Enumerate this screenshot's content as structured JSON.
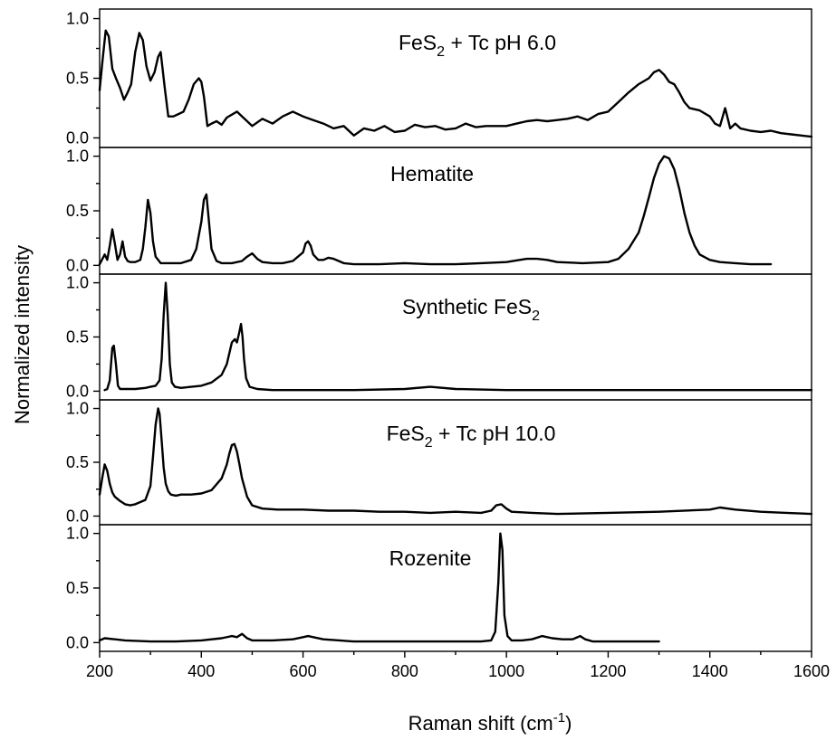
{
  "chart_data": {
    "type": "line",
    "xlabel": "Raman shift (cm",
    "xlabel_sup": "-1",
    "xlabel_end": ")",
    "ylabel": "Normalized intensity",
    "xlim": [
      200,
      1600
    ],
    "x_ticks": [
      200,
      400,
      600,
      800,
      1000,
      1200,
      1400,
      1600
    ],
    "y_ticks": [
      0.0,
      0.5,
      1.0
    ],
    "y_tick_labels": [
      "0.0",
      "0.5",
      "1.0"
    ],
    "panels": [
      {
        "label": "FeS",
        "label_sub": "2",
        "label_rest": " + Tc pH 6.0",
        "ylim": [
          -0.08,
          1.08
        ],
        "x": [
          200,
          205,
          212,
          218,
          225,
          232,
          240,
          248,
          255,
          262,
          270,
          278,
          285,
          292,
          300,
          308,
          315,
          320,
          328,
          335,
          345,
          355,
          365,
          375,
          385,
          395,
          400,
          405,
          412,
          420,
          430,
          440,
          450,
          470,
          500,
          520,
          540,
          560,
          580,
          600,
          620,
          640,
          660,
          680,
          700,
          720,
          740,
          760,
          780,
          800,
          820,
          840,
          860,
          880,
          900,
          920,
          940,
          960,
          980,
          1000,
          1020,
          1040,
          1060,
          1080,
          1100,
          1120,
          1140,
          1160,
          1180,
          1200,
          1220,
          1240,
          1260,
          1280,
          1290,
          1300,
          1310,
          1320,
          1330,
          1340,
          1350,
          1360,
          1380,
          1400,
          1410,
          1420,
          1430,
          1440,
          1450,
          1460,
          1480,
          1500,
          1520,
          1540,
          1560,
          1580,
          1600
        ],
        "y": [
          0.4,
          0.62,
          0.9,
          0.85,
          0.58,
          0.5,
          0.42,
          0.32,
          0.38,
          0.45,
          0.72,
          0.88,
          0.82,
          0.6,
          0.48,
          0.55,
          0.68,
          0.72,
          0.42,
          0.18,
          0.18,
          0.2,
          0.22,
          0.32,
          0.45,
          0.5,
          0.47,
          0.35,
          0.1,
          0.12,
          0.14,
          0.11,
          0.17,
          0.22,
          0.1,
          0.16,
          0.12,
          0.18,
          0.22,
          0.18,
          0.15,
          0.12,
          0.08,
          0.1,
          0.02,
          0.08,
          0.06,
          0.1,
          0.05,
          0.06,
          0.11,
          0.09,
          0.1,
          0.07,
          0.08,
          0.12,
          0.09,
          0.1,
          0.1,
          0.1,
          0.12,
          0.14,
          0.15,
          0.14,
          0.15,
          0.16,
          0.18,
          0.15,
          0.2,
          0.22,
          0.3,
          0.38,
          0.45,
          0.5,
          0.55,
          0.57,
          0.53,
          0.47,
          0.45,
          0.38,
          0.3,
          0.25,
          0.23,
          0.18,
          0.12,
          0.1,
          0.25,
          0.08,
          0.12,
          0.08,
          0.06,
          0.05,
          0.06,
          0.04,
          0.03,
          0.02,
          0.01
        ]
      },
      {
        "label": "Hematite",
        "label_sub": "",
        "label_rest": "",
        "ylim": [
          -0.08,
          1.08
        ],
        "x": [
          200,
          210,
          215,
          220,
          225,
          230,
          235,
          240,
          245,
          250,
          255,
          260,
          270,
          280,
          285,
          290,
          295,
          300,
          305,
          310,
          320,
          340,
          360,
          380,
          390,
          400,
          405,
          410,
          415,
          420,
          430,
          440,
          460,
          480,
          490,
          500,
          510,
          520,
          540,
          560,
          580,
          600,
          605,
          610,
          615,
          620,
          630,
          640,
          650,
          660,
          670,
          680,
          700,
          750,
          800,
          850,
          900,
          950,
          1000,
          1040,
          1060,
          1080,
          1100,
          1150,
          1200,
          1220,
          1240,
          1260,
          1270,
          1280,
          1290,
          1300,
          1310,
          1320,
          1330,
          1340,
          1350,
          1360,
          1370,
          1380,
          1400,
          1420,
          1450,
          1480,
          1500,
          1520
        ],
        "y": [
          0.01,
          0.1,
          0.05,
          0.18,
          0.33,
          0.2,
          0.05,
          0.1,
          0.22,
          0.08,
          0.04,
          0.03,
          0.03,
          0.05,
          0.15,
          0.35,
          0.6,
          0.48,
          0.22,
          0.08,
          0.02,
          0.02,
          0.02,
          0.05,
          0.15,
          0.4,
          0.6,
          0.65,
          0.4,
          0.15,
          0.04,
          0.02,
          0.02,
          0.04,
          0.08,
          0.11,
          0.06,
          0.03,
          0.02,
          0.02,
          0.04,
          0.12,
          0.2,
          0.22,
          0.18,
          0.1,
          0.05,
          0.05,
          0.07,
          0.06,
          0.04,
          0.02,
          0.01,
          0.01,
          0.02,
          0.01,
          0.01,
          0.02,
          0.03,
          0.06,
          0.06,
          0.05,
          0.03,
          0.02,
          0.03,
          0.06,
          0.15,
          0.3,
          0.45,
          0.62,
          0.8,
          0.93,
          1.0,
          0.98,
          0.88,
          0.7,
          0.48,
          0.3,
          0.18,
          0.1,
          0.05,
          0.03,
          0.02,
          0.01,
          0.01,
          0.01
        ]
      },
      {
        "label": "Synthetic FeS",
        "label_sub": "2",
        "label_rest": "",
        "ylim": [
          -0.08,
          1.08
        ],
        "x": [
          210,
          215,
          220,
          225,
          228,
          232,
          236,
          240,
          250,
          270,
          290,
          300,
          310,
          318,
          322,
          326,
          330,
          334,
          338,
          342,
          348,
          360,
          380,
          400,
          420,
          440,
          450,
          460,
          466,
          470,
          475,
          478,
          481,
          484,
          488,
          495,
          510,
          540,
          600,
          700,
          800,
          850,
          900,
          1000,
          1100,
          1200,
          1300,
          1400,
          1500,
          1600
        ],
        "y": [
          0.01,
          0.02,
          0.1,
          0.4,
          0.42,
          0.25,
          0.05,
          0.02,
          0.02,
          0.02,
          0.03,
          0.04,
          0.05,
          0.1,
          0.3,
          0.7,
          1.0,
          0.7,
          0.25,
          0.08,
          0.04,
          0.03,
          0.04,
          0.05,
          0.08,
          0.15,
          0.25,
          0.45,
          0.48,
          0.45,
          0.55,
          0.62,
          0.5,
          0.3,
          0.12,
          0.04,
          0.02,
          0.01,
          0.01,
          0.01,
          0.02,
          0.04,
          0.02,
          0.01,
          0.01,
          0.01,
          0.01,
          0.01,
          0.01,
          0.01
        ]
      },
      {
        "label": "FeS",
        "label_sub": "2",
        "label_rest": " + Tc pH 10.0",
        "ylim": [
          -0.08,
          1.08
        ],
        "x": [
          200,
          205,
          210,
          215,
          220,
          225,
          230,
          240,
          250,
          260,
          270,
          280,
          290,
          300,
          305,
          310,
          315,
          318,
          322,
          326,
          330,
          335,
          340,
          350,
          360,
          380,
          400,
          420,
          440,
          450,
          455,
          460,
          465,
          470,
          475,
          480,
          490,
          500,
          520,
          550,
          600,
          650,
          700,
          750,
          800,
          850,
          900,
          950,
          970,
          980,
          990,
          1000,
          1010,
          1050,
          1100,
          1200,
          1300,
          1400,
          1420,
          1450,
          1500,
          1550,
          1600
        ],
        "y": [
          0.2,
          0.35,
          0.48,
          0.42,
          0.3,
          0.22,
          0.18,
          0.14,
          0.11,
          0.1,
          0.11,
          0.13,
          0.15,
          0.28,
          0.55,
          0.85,
          1.0,
          0.95,
          0.7,
          0.45,
          0.3,
          0.23,
          0.2,
          0.19,
          0.2,
          0.2,
          0.21,
          0.24,
          0.35,
          0.48,
          0.58,
          0.66,
          0.67,
          0.6,
          0.48,
          0.35,
          0.18,
          0.1,
          0.07,
          0.06,
          0.06,
          0.05,
          0.05,
          0.04,
          0.04,
          0.03,
          0.04,
          0.03,
          0.05,
          0.1,
          0.11,
          0.07,
          0.04,
          0.03,
          0.02,
          0.03,
          0.04,
          0.06,
          0.08,
          0.06,
          0.04,
          0.03,
          0.02
        ]
      },
      {
        "label": "Rozenite",
        "label_sub": "",
        "label_rest": "",
        "ylim": [
          -0.08,
          1.08
        ],
        "x": [
          200,
          210,
          230,
          250,
          300,
          350,
          400,
          440,
          460,
          470,
          480,
          490,
          500,
          540,
          580,
          600,
          610,
          620,
          640,
          700,
          800,
          900,
          950,
          970,
          978,
          984,
          988,
          992,
          996,
          1002,
          1010,
          1030,
          1050,
          1070,
          1090,
          1110,
          1130,
          1145,
          1155,
          1170,
          1200,
          1250,
          1300
        ],
        "y": [
          0.02,
          0.04,
          0.03,
          0.02,
          0.01,
          0.01,
          0.02,
          0.04,
          0.06,
          0.05,
          0.08,
          0.04,
          0.02,
          0.02,
          0.03,
          0.05,
          0.06,
          0.05,
          0.03,
          0.01,
          0.01,
          0.01,
          0.01,
          0.02,
          0.1,
          0.55,
          1.0,
          0.85,
          0.25,
          0.06,
          0.02,
          0.02,
          0.03,
          0.06,
          0.04,
          0.03,
          0.03,
          0.06,
          0.03,
          0.01,
          0.01,
          0.01,
          0.01
        ]
      }
    ]
  }
}
